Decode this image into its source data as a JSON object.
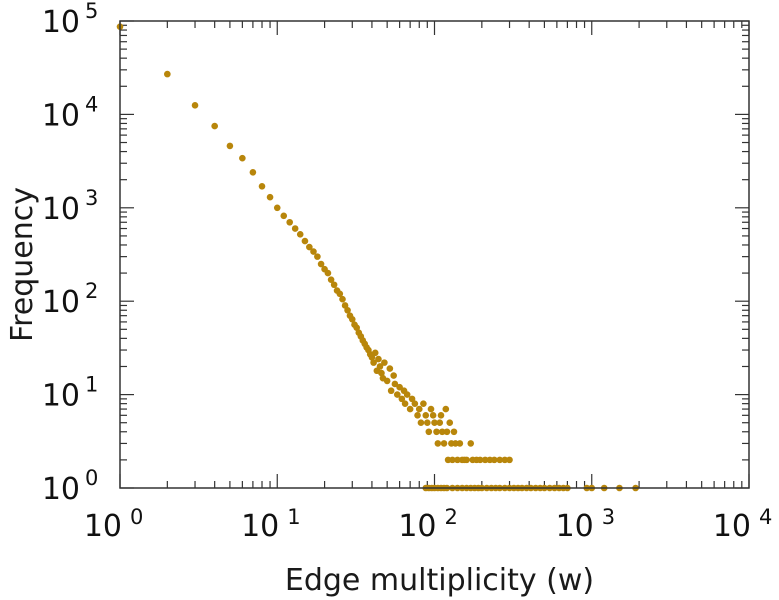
{
  "chart_data": {
    "type": "scatter",
    "title": "",
    "xlabel": "Edge multiplicity (w)",
    "ylabel": "Frequency",
    "xscale": "log",
    "yscale": "log",
    "xlim": [
      1,
      10000
    ],
    "ylim": [
      1,
      100000
    ],
    "grid": false,
    "legend": "none",
    "x_ticks": [
      {
        "base": "10",
        "exp": "0",
        "value": 1
      },
      {
        "base": "10",
        "exp": "1",
        "value": 10
      },
      {
        "base": "10",
        "exp": "2",
        "value": 100
      },
      {
        "base": "10",
        "exp": "3",
        "value": 1000
      },
      {
        "base": "10",
        "exp": "4",
        "value": 10000
      }
    ],
    "y_ticks": [
      {
        "base": "10",
        "exp": "0",
        "value": 1
      },
      {
        "base": "10",
        "exp": "1",
        "value": 10
      },
      {
        "base": "10",
        "exp": "2",
        "value": 100
      },
      {
        "base": "10",
        "exp": "3",
        "value": 1000
      },
      {
        "base": "10",
        "exp": "4",
        "value": 10000
      },
      {
        "base": "10",
        "exp": "5",
        "value": 100000
      }
    ],
    "marker_color": "#b8860b",
    "series": [
      {
        "points": [
          [
            1,
            87000
          ],
          [
            2,
            27000
          ],
          [
            3,
            12500
          ],
          [
            4,
            7500
          ],
          [
            5,
            4600
          ],
          [
            6,
            3400
          ],
          [
            7,
            2400
          ],
          [
            8,
            1700
          ],
          [
            9,
            1300
          ],
          [
            10,
            1000
          ],
          [
            11,
            820
          ],
          [
            12,
            700
          ],
          [
            13,
            600
          ],
          [
            14,
            520
          ],
          [
            15,
            440
          ],
          [
            16,
            380
          ],
          [
            17,
            340
          ],
          [
            18,
            300
          ],
          [
            19,
            250
          ],
          [
            20,
            220
          ],
          [
            21,
            200
          ],
          [
            22,
            170
          ],
          [
            23,
            150
          ],
          [
            24,
            130
          ],
          [
            25,
            120
          ],
          [
            26,
            105
          ],
          [
            27,
            90
          ],
          [
            28,
            80
          ],
          [
            29,
            70
          ],
          [
            30,
            64
          ],
          [
            31,
            56
          ],
          [
            32,
            52
          ],
          [
            33,
            46
          ],
          [
            34,
            42
          ],
          [
            35,
            38
          ],
          [
            36,
            35
          ],
          [
            37,
            32
          ],
          [
            38,
            30
          ],
          [
            39,
            27
          ],
          [
            40,
            25
          ],
          [
            41,
            22
          ],
          [
            42,
            28
          ],
          [
            43,
            18
          ],
          [
            44,
            24
          ],
          [
            45,
            20
          ],
          [
            46,
            17
          ],
          [
            47,
            15
          ],
          [
            48,
            22
          ],
          [
            50,
            14
          ],
          [
            52,
            19
          ],
          [
            53,
            11
          ],
          [
            55,
            16
          ],
          [
            56,
            13
          ],
          [
            58,
            10
          ],
          [
            60,
            12
          ],
          [
            62,
            9
          ],
          [
            64,
            11
          ],
          [
            65,
            8
          ],
          [
            67,
            10
          ],
          [
            70,
            7
          ],
          [
            72,
            9
          ],
          [
            75,
            8
          ],
          [
            78,
            6
          ],
          [
            80,
            7
          ],
          [
            82,
            5
          ],
          [
            85,
            8
          ],
          [
            88,
            6
          ],
          [
            90,
            5
          ],
          [
            92,
            4
          ],
          [
            95,
            7
          ],
          [
            98,
            6
          ],
          [
            100,
            5
          ],
          [
            103,
            4
          ],
          [
            105,
            3
          ],
          [
            108,
            5
          ],
          [
            110,
            6
          ],
          [
            112,
            4
          ],
          [
            115,
            3
          ],
          [
            118,
            7
          ],
          [
            120,
            4
          ],
          [
            122,
            2
          ],
          [
            125,
            5
          ],
          [
            128,
            3
          ],
          [
            130,
            2
          ],
          [
            133,
            4
          ],
          [
            136,
            3
          ],
          [
            140,
            2
          ],
          [
            145,
            3
          ],
          [
            150,
            2
          ],
          [
            155,
            2
          ],
          [
            160,
            2
          ],
          [
            170,
            3
          ],
          [
            175,
            2
          ],
          [
            185,
            2
          ],
          [
            195,
            2
          ],
          [
            210,
            2
          ],
          [
            225,
            2
          ],
          [
            240,
            2
          ],
          [
            260,
            2
          ],
          [
            280,
            2
          ],
          [
            300,
            2
          ],
          [
            88,
            1
          ],
          [
            92,
            1
          ],
          [
            96,
            1
          ],
          [
            100,
            1
          ],
          [
            105,
            1
          ],
          [
            110,
            1
          ],
          [
            115,
            1
          ],
          [
            120,
            1
          ],
          [
            130,
            1
          ],
          [
            140,
            1
          ],
          [
            150,
            1
          ],
          [
            160,
            1
          ],
          [
            170,
            1
          ],
          [
            180,
            1
          ],
          [
            190,
            1
          ],
          [
            200,
            1
          ],
          [
            215,
            1
          ],
          [
            230,
            1
          ],
          [
            245,
            1
          ],
          [
            260,
            1
          ],
          [
            280,
            1
          ],
          [
            300,
            1
          ],
          [
            320,
            1
          ],
          [
            340,
            1
          ],
          [
            360,
            1
          ],
          [
            385,
            1
          ],
          [
            410,
            1
          ],
          [
            440,
            1
          ],
          [
            470,
            1
          ],
          [
            500,
            1
          ],
          [
            540,
            1
          ],
          [
            580,
            1
          ],
          [
            620,
            1
          ],
          [
            660,
            1
          ],
          [
            700,
            1
          ],
          [
            930,
            1
          ],
          [
            1000,
            1
          ],
          [
            1200,
            1
          ],
          [
            1500,
            1
          ],
          [
            1900,
            1
          ]
        ]
      }
    ]
  }
}
